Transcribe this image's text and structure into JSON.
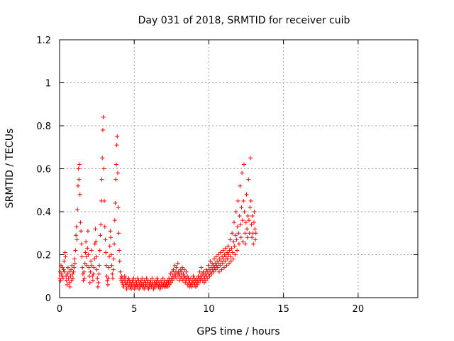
{
  "chart_data": {
    "type": "scatter",
    "title": "Day 031 of 2018, SRMTID for receiver cuib",
    "xlabel": "GPS time / hours",
    "ylabel": "SRMTID / TECUs",
    "xlim": [
      0,
      24
    ],
    "ylim": [
      0,
      1.2
    ],
    "xticks": [
      0,
      5,
      10,
      15,
      20
    ],
    "yticks": [
      0,
      0.2,
      0.4,
      0.6,
      0.8,
      1,
      1.2
    ],
    "xtick_labels": [
      "0",
      "5",
      "10",
      "15",
      "20"
    ],
    "ytick_labels": [
      "0",
      "0.2",
      "0.4",
      "0.6",
      "0.8",
      "1",
      "1.2"
    ],
    "grid": true,
    "marker": "plus",
    "color": "#ff0000",
    "series": [
      {
        "name": "SRMTID",
        "x_start": 0.0,
        "x_step": 0.0333,
        "y": [
          0.09,
          0.12,
          0.08,
          0.15,
          0.11,
          0.1,
          0.14,
          0.09,
          0.13,
          0.17,
          0.12,
          0.21,
          0.19,
          0.1,
          0.08,
          0.06,
          0.11,
          0.14,
          0.09,
          0.12,
          0.07,
          0.05,
          0.1,
          0.13,
          0.08,
          0.15,
          0.11,
          0.09,
          0.12,
          0.14,
          0.18,
          0.16,
          0.22,
          0.29,
          0.33,
          0.27,
          0.41,
          0.52,
          0.6,
          0.55,
          0.62,
          0.48,
          0.35,
          0.31,
          0.25,
          0.19,
          0.14,
          0.11,
          0.08,
          0.12,
          0.09,
          0.16,
          0.21,
          0.26,
          0.19,
          0.15,
          0.23,
          0.31,
          0.2,
          0.14,
          0.1,
          0.07,
          0.12,
          0.17,
          0.22,
          0.15,
          0.1,
          0.08,
          0.11,
          0.14,
          0.18,
          0.25,
          0.32,
          0.26,
          0.19,
          0.13,
          0.09,
          0.05,
          0.07,
          0.11,
          0.15,
          0.22,
          0.29,
          0.34,
          0.45,
          0.55,
          0.65,
          0.78,
          0.84,
          0.6,
          0.45,
          0.33,
          0.27,
          0.21,
          0.15,
          0.1,
          0.08,
          0.06,
          0.09,
          0.14,
          0.19,
          0.24,
          0.31,
          0.28,
          0.2,
          0.15,
          0.11,
          0.09,
          0.13,
          0.18,
          0.25,
          0.36,
          0.44,
          0.55,
          0.62,
          0.71,
          0.75,
          0.58,
          0.42,
          0.3,
          0.22,
          0.17,
          0.12,
          0.09,
          0.08,
          0.1,
          0.07,
          0.09,
          0.06,
          0.05,
          0.08,
          0.1,
          0.07,
          0.09,
          0.06,
          0.04,
          0.07,
          0.08,
          0.05,
          0.09,
          0.06,
          0.08,
          0.05,
          0.07,
          0.04,
          0.06,
          0.08,
          0.05,
          0.07,
          0.09,
          0.06,
          0.04,
          0.05,
          0.08,
          0.06,
          0.07,
          0.05,
          0.09,
          0.06,
          0.08,
          0.04,
          0.06,
          0.07,
          0.05,
          0.08,
          0.06,
          0.09,
          0.05,
          0.07,
          0.06,
          0.04,
          0.08,
          0.05,
          0.07,
          0.06,
          0.09,
          0.05,
          0.07,
          0.08,
          0.04,
          0.06,
          0.05,
          0.07,
          0.08,
          0.06,
          0.05,
          0.09,
          0.07,
          0.06,
          0.04,
          0.05,
          0.07,
          0.08,
          0.06,
          0.05,
          0.07,
          0.09,
          0.06,
          0.08,
          0.05,
          0.07,
          0.06,
          0.04,
          0.05,
          0.08,
          0.06,
          0.07,
          0.05,
          0.09,
          0.06,
          0.07,
          0.05,
          0.08,
          0.06,
          0.05,
          0.07,
          0.06,
          0.08,
          0.05,
          0.07,
          0.09,
          0.06,
          0.08,
          0.11,
          0.07,
          0.09,
          0.12,
          0.08,
          0.1,
          0.13,
          0.09,
          0.11,
          0.15,
          0.1,
          0.12,
          0.14,
          0.09,
          0.11,
          0.16,
          0.12,
          0.1,
          0.08,
          0.11,
          0.13,
          0.09,
          0.12,
          0.1,
          0.14,
          0.08,
          0.11,
          0.09,
          0.13,
          0.1,
          0.07,
          0.09,
          0.12,
          0.08,
          0.1,
          0.06,
          0.09,
          0.07,
          0.05,
          0.08,
          0.06,
          0.09,
          0.07,
          0.05,
          0.06,
          0.08,
          0.1,
          0.07,
          0.09,
          0.06,
          0.08,
          0.05,
          0.07,
          0.09,
          0.06,
          0.08,
          0.1,
          0.07,
          0.09,
          0.12,
          0.08,
          0.1,
          0.14,
          0.09,
          0.11,
          0.08,
          0.12,
          0.1,
          0.07,
          0.09,
          0.11,
          0.08,
          0.13,
          0.1,
          0.12,
          0.09,
          0.15,
          0.11,
          0.13,
          0.1,
          0.17,
          0.12,
          0.14,
          0.11,
          0.16,
          0.13,
          0.15,
          0.12,
          0.18,
          0.14,
          0.16,
          0.13,
          0.19,
          0.15,
          0.17,
          0.14,
          0.2,
          0.16,
          0.12,
          0.18,
          0.15,
          0.21,
          0.17,
          0.13,
          0.19,
          0.16,
          0.22,
          0.18,
          0.14,
          0.2,
          0.17,
          0.23,
          0.19,
          0.15,
          0.21,
          0.18,
          0.24,
          0.2,
          0.16,
          0.22,
          0.27,
          0.19,
          0.17,
          0.23,
          0.3,
          0.21,
          0.18,
          0.26,
          0.35,
          0.24,
          0.2,
          0.29,
          0.4,
          0.27,
          0.22,
          0.33,
          0.45,
          0.3,
          0.25,
          0.38,
          0.52,
          0.34,
          0.28,
          0.42,
          0.58,
          0.36,
          0.26,
          0.45,
          0.62,
          0.4,
          0.3,
          0.25,
          0.35,
          0.48,
          0.32,
          0.28,
          0.38,
          0.55,
          0.36,
          0.3,
          0.42,
          0.65,
          0.45,
          0.34,
          0.28,
          0.38,
          0.3,
          0.25,
          0.35,
          0.4,
          0.32,
          0.27,
          0.3
        ]
      }
    ]
  }
}
